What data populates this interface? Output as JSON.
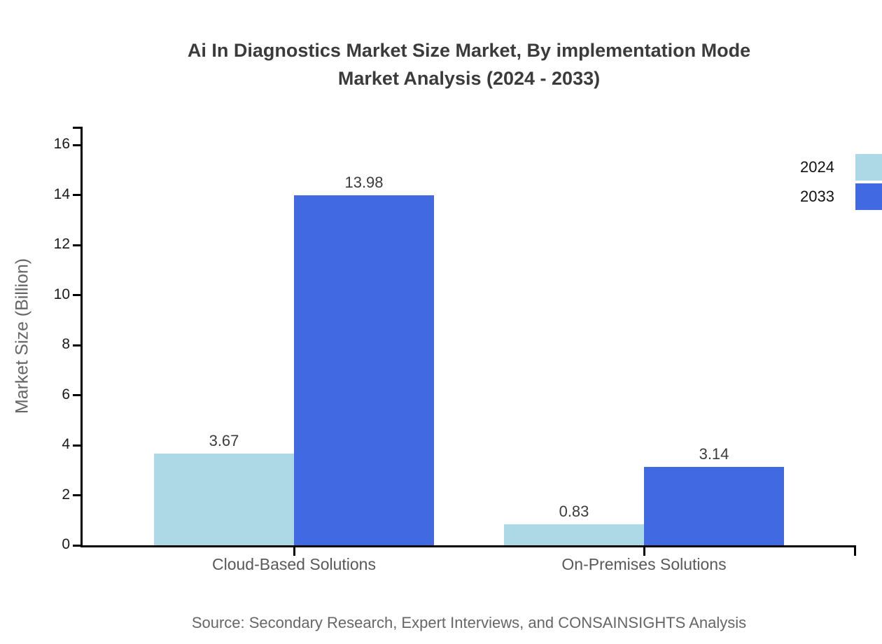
{
  "title_lines": [
    "Ai In Diagnostics Market Size Market, By implementation Mode",
    "Market Analysis (2024 - 2033)"
  ],
  "source": "Source: Secondary Research, Expert Interviews, and CONSAINSIGHTS Analysis",
  "chart_data": {
    "type": "bar",
    "title": "Ai In Diagnostics Market Size Market, By implementation Mode Market Analysis (2024 - 2033)",
    "categories": [
      "Cloud-Based Solutions",
      "On-Premises Solutions"
    ],
    "series": [
      {
        "name": "2024",
        "color": "#ADD8E6",
        "values": [
          3.67,
          0.83
        ]
      },
      {
        "name": "2033",
        "color": "#4169E1",
        "values": [
          13.98,
          3.14
        ]
      }
    ],
    "value_labels": [
      "3.67",
      "13.98",
      "0.83",
      "3.14"
    ],
    "xlabel": "",
    "ylabel": "Market Size (Billion)",
    "ylim": [
      0,
      16
    ],
    "yticks": [
      0,
      2,
      4,
      6,
      8,
      10,
      12,
      14,
      16
    ],
    "grid": false,
    "legend_position": "top-right",
    "axis_color": "#000000",
    "source": "Source: Secondary Research, Expert Interviews, and CONSAINSIGHTS Analysis"
  }
}
